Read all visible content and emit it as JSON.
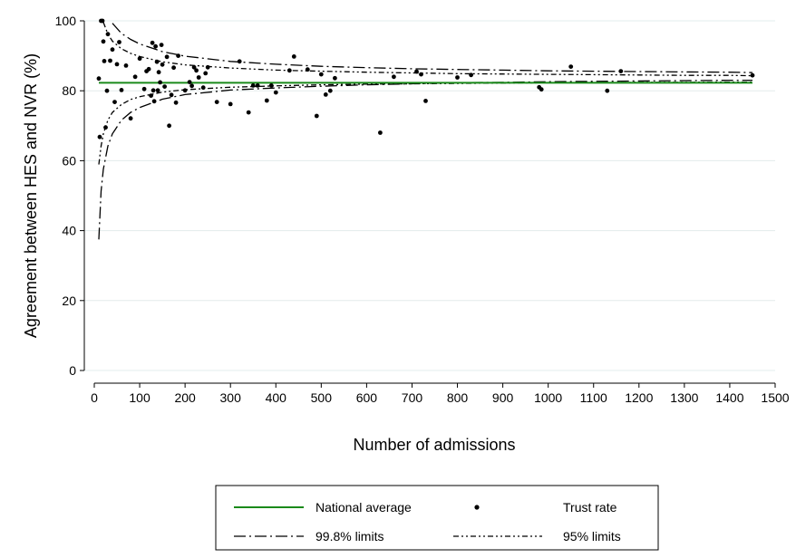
{
  "chart_data": {
    "type": "scatter",
    "title": "",
    "xlabel": "Number of admissions",
    "ylabel": "Agreement between HES and NVR (%)",
    "xlim": [
      0,
      1500
    ],
    "ylim": [
      0,
      100
    ],
    "x_ticks": [
      0,
      100,
      200,
      300,
      400,
      500,
      600,
      700,
      800,
      900,
      1000,
      1100,
      1200,
      1300,
      1400,
      1500
    ],
    "y_ticks": [
      0,
      20,
      40,
      60,
      80,
      100
    ],
    "grid": "horizontal",
    "legend_position": "bottom",
    "national_average": 82.3,
    "series": [
      {
        "name": "National average",
        "kind": "hline",
        "color": "#1a8a1a",
        "x": [
          10,
          1450
        ],
        "y": [
          82.3,
          82.3
        ]
      },
      {
        "name": "Trust rate",
        "kind": "points",
        "color": "#000000",
        "points": [
          [
            10,
            83.5
          ],
          [
            12,
            66.8
          ],
          [
            15,
            100
          ],
          [
            18,
            100
          ],
          [
            20,
            94.1
          ],
          [
            22,
            88.5
          ],
          [
            25,
            69.5
          ],
          [
            28,
            80
          ],
          [
            30,
            96.2
          ],
          [
            35,
            88.6
          ],
          [
            40,
            91.8
          ],
          [
            45,
            76.8
          ],
          [
            50,
            87.6
          ],
          [
            55,
            93.9
          ],
          [
            60,
            80.2
          ],
          [
            70,
            87.2
          ],
          [
            80,
            72.1
          ],
          [
            90,
            84
          ],
          [
            100,
            89.2
          ],
          [
            110,
            80.5
          ],
          [
            115,
            85.6
          ],
          [
            120,
            86.2
          ],
          [
            125,
            78.6
          ],
          [
            128,
            93.7
          ],
          [
            130,
            80.1
          ],
          [
            132,
            77
          ],
          [
            135,
            92.7
          ],
          [
            138,
            88.3
          ],
          [
            140,
            80.1
          ],
          [
            142,
            85.3
          ],
          [
            145,
            82.4
          ],
          [
            148,
            93.1
          ],
          [
            150,
            87.5
          ],
          [
            155,
            81.2
          ],
          [
            160,
            89.7
          ],
          [
            165,
            70
          ],
          [
            170,
            78.8
          ],
          [
            175,
            86.6
          ],
          [
            180,
            76.6
          ],
          [
            185,
            90
          ],
          [
            200,
            80.1
          ],
          [
            210,
            82.5
          ],
          [
            215,
            81.4
          ],
          [
            220,
            86.7
          ],
          [
            225,
            85.8
          ],
          [
            230,
            83.8
          ],
          [
            240,
            80.9
          ],
          [
            245,
            85
          ],
          [
            250,
            86.7
          ],
          [
            270,
            76.8
          ],
          [
            300,
            76.2
          ],
          [
            320,
            88.4
          ],
          [
            340,
            73.8
          ],
          [
            350,
            81.5
          ],
          [
            360,
            81.5
          ],
          [
            380,
            77.2
          ],
          [
            390,
            81.5
          ],
          [
            400,
            79.5
          ],
          [
            430,
            85.8
          ],
          [
            440,
            89.8
          ],
          [
            470,
            86.1
          ],
          [
            490,
            72.8
          ],
          [
            500,
            84.7
          ],
          [
            510,
            78.9
          ],
          [
            520,
            80
          ],
          [
            530,
            83.6
          ],
          [
            630,
            68
          ],
          [
            660,
            84
          ],
          [
            710,
            85.5
          ],
          [
            720,
            84.7
          ],
          [
            730,
            77.1
          ],
          [
            800,
            83.8
          ],
          [
            830,
            84.5
          ],
          [
            980,
            81
          ],
          [
            985,
            80.4
          ],
          [
            1050,
            86.9
          ],
          [
            1130,
            80
          ],
          [
            1160,
            85.6
          ],
          [
            1450,
            84.4
          ]
        ]
      },
      {
        "name": "99.8% limits",
        "kind": "band",
        "color": "#000000",
        "upper_x": [
          40,
          60,
          80,
          100,
          150,
          200,
          300,
          400,
          500,
          600,
          700,
          800,
          900,
          1000,
          1100,
          1200,
          1300,
          1400,
          1450
        ],
        "upper_y": [
          99.3,
          96.4,
          94.7,
          93.4,
          91.2,
          89.9,
          88.4,
          87.6,
          87.0,
          86.6,
          86.3,
          86.1,
          85.9,
          85.7,
          85.6,
          85.5,
          85.4,
          85.3,
          85.2
        ],
        "lower_x": [
          10,
          15,
          20,
          30,
          40,
          60,
          80,
          100,
          150,
          200,
          300,
          400,
          500,
          600,
          700,
          800,
          900,
          1000,
          1100,
          1200,
          1300,
          1400,
          1450
        ],
        "lower_y": [
          37.5,
          51.3,
          57.6,
          64.2,
          67.7,
          71.6,
          73.8,
          75.2,
          77.6,
          78.9,
          80.2,
          80.8,
          81.3,
          81.7,
          82.0,
          82.3,
          82.4,
          82.6,
          82.7,
          82.8,
          82.9,
          83.0,
          83.0
        ]
      },
      {
        "name": "95% limits",
        "kind": "band",
        "color": "#000000",
        "upper_x": [
          20,
          30,
          40,
          60,
          80,
          100,
          150,
          200,
          300,
          400,
          500,
          600,
          700,
          800,
          900,
          1000,
          1100,
          1200,
          1300,
          1400,
          1450
        ],
        "upper_y": [
          99.6,
          96.2,
          94.2,
          92.0,
          90.7,
          89.8,
          88.3,
          87.4,
          86.5,
          85.9,
          85.6,
          85.3,
          85.1,
          84.9,
          84.8,
          84.7,
          84.6,
          84.5,
          84.4,
          84.4,
          84.3
        ],
        "lower_x": [
          10,
          15,
          20,
          30,
          40,
          60,
          80,
          100,
          150,
          200,
          300,
          400,
          500,
          600,
          700,
          800,
          900,
          1000,
          1100,
          1200,
          1300,
          1400,
          1450
        ],
        "lower_y": [
          58.9,
          64.2,
          67.7,
          71.6,
          73.8,
          76.1,
          77.5,
          78.3,
          79.6,
          80.3,
          81.0,
          81.4,
          81.7,
          81.9,
          82.0,
          82.1,
          82.2,
          82.3,
          82.3,
          82.4,
          82.4,
          82.5,
          82.5
        ]
      }
    ]
  }
}
